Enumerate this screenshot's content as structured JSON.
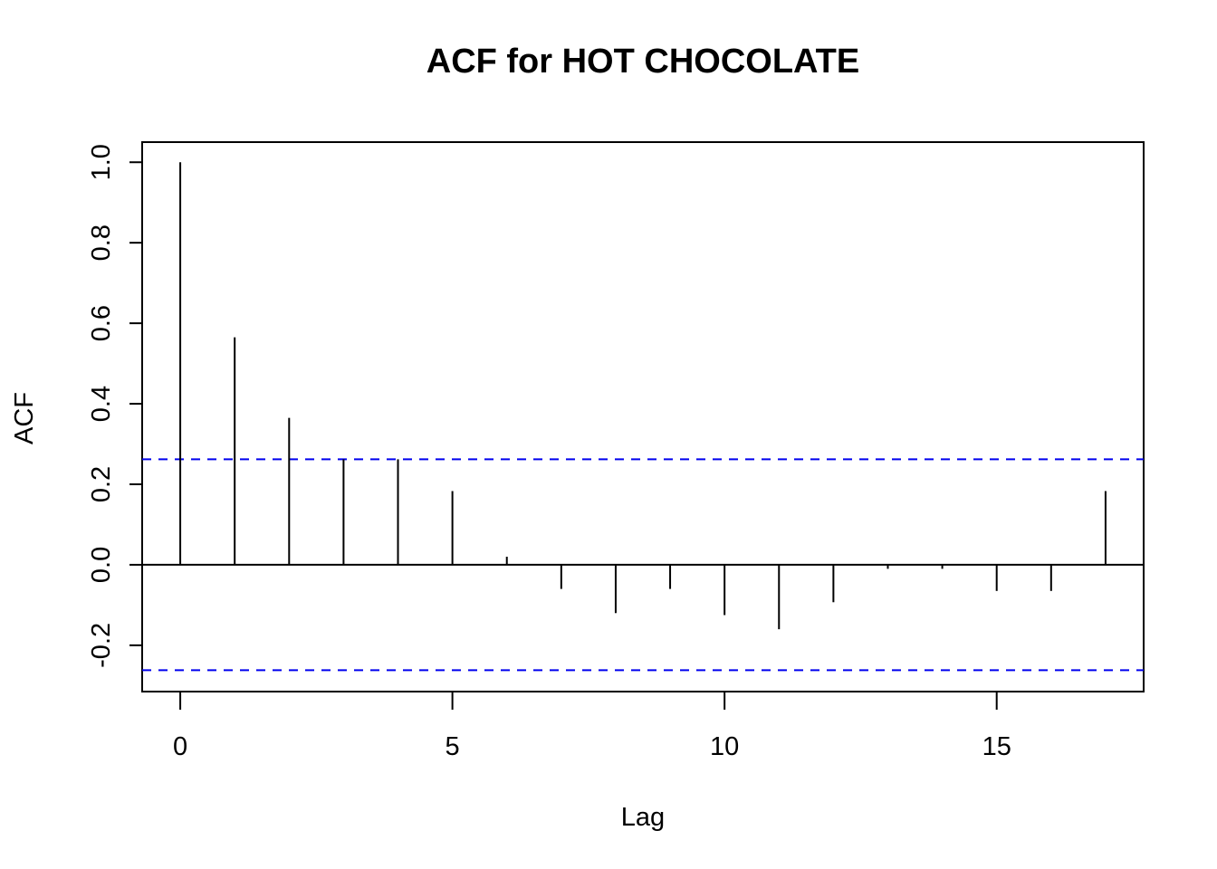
{
  "chart_data": {
    "type": "bar",
    "title": "ACF for HOT CHOCOLATE",
    "xlabel": "Lag",
    "ylabel": "ACF",
    "x": [
      0,
      1,
      2,
      3,
      4,
      5,
      6,
      7,
      8,
      9,
      10,
      11,
      12,
      13,
      14,
      15,
      16,
      17
    ],
    "values": [
      1.0,
      0.565,
      0.365,
      0.262,
      0.262,
      0.183,
      0.02,
      -0.06,
      -0.12,
      -0.06,
      -0.125,
      -0.16,
      -0.093,
      -0.01,
      -0.01,
      -0.065,
      -0.065,
      0.183
    ],
    "confidence_bound": 0.262,
    "xlim": [
      -0.7,
      17.7
    ],
    "ylim": [
      -0.315,
      1.05
    ],
    "x_ticks": [
      0,
      5,
      10,
      15
    ],
    "y_ticks": [
      -0.2,
      0.0,
      0.2,
      0.4,
      0.6,
      0.8,
      1.0
    ],
    "x_tick_labels": [
      "0",
      "5",
      "10",
      "15"
    ],
    "y_tick_labels": [
      "-0.2",
      "0.0",
      "0.2",
      "0.4",
      "0.6",
      "0.8",
      "1.0"
    ],
    "grid": false,
    "colors": {
      "bars": "#000000",
      "confidence": "#0000ee",
      "axes": "#000000"
    }
  }
}
